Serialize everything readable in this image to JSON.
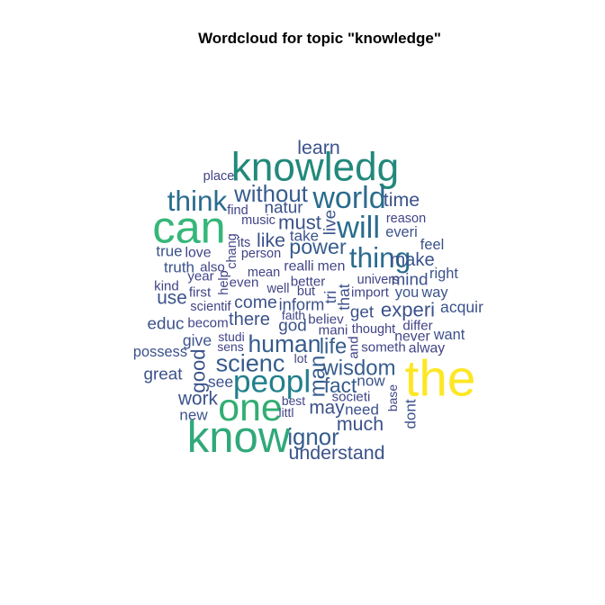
{
  "chart_data": {
    "type": "wordcloud",
    "title": "Wordcloud for topic \"knowledge\"",
    "colors": {
      "the": "#fde725",
      "can": "#35b779",
      "know": "#30a97a",
      "one": "#31ae72",
      "knowledg": "#21897a",
      "peopl": "#22808c",
      "world": "#2a6c8e",
      "will": "#2a6c8e",
      "think": "#2a6c8e",
      "thing": "#2a6c8e",
      "mid": "#365c8d",
      "small": "#3b528b",
      "tiny": "#414487"
    },
    "words": [
      {
        "text": "the",
        "size": 9.0,
        "rotated": false
      },
      {
        "text": "can",
        "size": 8.0,
        "rotated": false
      },
      {
        "text": "know",
        "size": 7.8,
        "rotated": false
      },
      {
        "text": "knowledg",
        "size": 7.0,
        "rotated": false
      },
      {
        "text": "one",
        "size": 6.8,
        "rotated": false
      },
      {
        "text": "peopl",
        "size": 5.6,
        "rotated": false
      },
      {
        "text": "will",
        "size": 5.5,
        "rotated": false
      },
      {
        "text": "world",
        "size": 5.4,
        "rotated": false
      },
      {
        "text": "think",
        "size": 5.0,
        "rotated": false
      },
      {
        "text": "thing",
        "size": 5.0,
        "rotated": false
      },
      {
        "text": "scienc",
        "size": 4.3,
        "rotated": false
      },
      {
        "text": "human",
        "size": 4.2,
        "rotated": false
      },
      {
        "text": "without",
        "size": 4.1,
        "rotated": false
      },
      {
        "text": "ignor",
        "size": 4.1,
        "rotated": false
      },
      {
        "text": "wisdom",
        "size": 3.8,
        "rotated": false
      },
      {
        "text": "man",
        "size": 3.8,
        "rotated": true
      },
      {
        "text": "power",
        "size": 3.7,
        "rotated": false
      },
      {
        "text": "life",
        "size": 3.8,
        "rotated": false
      },
      {
        "text": "fact",
        "size": 3.6,
        "rotated": false
      },
      {
        "text": "experi",
        "size": 3.5,
        "rotated": false
      },
      {
        "text": "must",
        "size": 3.5,
        "rotated": false
      },
      {
        "text": "good",
        "size": 3.5,
        "rotated": true
      },
      {
        "text": "learn",
        "size": 3.4,
        "rotated": false
      },
      {
        "text": "like",
        "size": 3.4,
        "rotated": false
      },
      {
        "text": "time",
        "size": 3.4,
        "rotated": false
      },
      {
        "text": "understand",
        "size": 3.4,
        "rotated": false
      },
      {
        "text": "much",
        "size": 3.4,
        "rotated": false
      },
      {
        "text": "may",
        "size": 3.3,
        "rotated": false
      },
      {
        "text": "work",
        "size": 3.3,
        "rotated": false
      },
      {
        "text": "use",
        "size": 3.3,
        "rotated": false
      },
      {
        "text": "make",
        "size": 3.2,
        "rotated": false
      },
      {
        "text": "there",
        "size": 3.2,
        "rotated": false
      },
      {
        "text": "come",
        "size": 3.1,
        "rotated": false
      },
      {
        "text": "mind",
        "size": 3.0,
        "rotated": false
      },
      {
        "text": "get",
        "size": 3.0,
        "rotated": false
      },
      {
        "text": "natur",
        "size": 3.0,
        "rotated": false
      },
      {
        "text": "live",
        "size": 3.0,
        "rotated": true
      },
      {
        "text": "educ",
        "size": 3.0,
        "rotated": false
      },
      {
        "text": "great",
        "size": 3.0,
        "rotated": false
      },
      {
        "text": "god",
        "size": 3.0,
        "rotated": false
      },
      {
        "text": "inform",
        "size": 2.9,
        "rotated": false
      },
      {
        "text": "tri",
        "size": 2.8,
        "rotated": true
      },
      {
        "text": "that",
        "size": 2.8,
        "rotated": true
      },
      {
        "text": "acquir",
        "size": 2.8,
        "rotated": false
      },
      {
        "text": "see",
        "size": 2.8,
        "rotated": false
      },
      {
        "text": "give",
        "size": 2.8,
        "rotated": false
      },
      {
        "text": "take",
        "size": 2.7,
        "rotated": false
      },
      {
        "text": "now",
        "size": 2.7,
        "rotated": false
      },
      {
        "text": "need",
        "size": 2.7,
        "rotated": false
      },
      {
        "text": "new",
        "size": 2.7,
        "rotated": false
      },
      {
        "text": "true",
        "size": 2.7,
        "rotated": false
      },
      {
        "text": "truth",
        "size": 2.7,
        "rotated": false
      },
      {
        "text": "dont",
        "size": 2.7,
        "rotated": true
      },
      {
        "text": "want",
        "size": 2.6,
        "rotated": false
      },
      {
        "text": "possess",
        "size": 2.6,
        "rotated": false
      },
      {
        "text": "everi",
        "size": 2.6,
        "rotated": false
      },
      {
        "text": "feel",
        "size": 2.6,
        "rotated": false
      },
      {
        "text": "right",
        "size": 2.6,
        "rotated": false
      },
      {
        "text": "way",
        "size": 2.6,
        "rotated": false
      },
      {
        "text": "you",
        "size": 2.6,
        "rotated": false
      },
      {
        "text": "realli",
        "size": 2.5,
        "rotated": false
      },
      {
        "text": "men",
        "size": 2.5,
        "rotated": false
      },
      {
        "text": "never",
        "size": 2.5,
        "rotated": false
      },
      {
        "text": "alway",
        "size": 2.5,
        "rotated": false
      },
      {
        "text": "love",
        "size": 2.5,
        "rotated": false
      },
      {
        "text": "societi",
        "size": 2.4,
        "rotated": false
      },
      {
        "text": "import",
        "size": 2.4,
        "rotated": false
      },
      {
        "text": "differ",
        "size": 2.4,
        "rotated": false
      },
      {
        "text": "and",
        "size": 2.4,
        "rotated": true
      },
      {
        "text": "even",
        "size": 2.4,
        "rotated": false
      },
      {
        "text": "better",
        "size": 2.4,
        "rotated": false
      },
      {
        "text": "believ",
        "size": 2.4,
        "rotated": false
      },
      {
        "text": "mani",
        "size": 2.4,
        "rotated": false
      },
      {
        "text": "someth",
        "size": 2.4,
        "rotated": false
      },
      {
        "text": "kind",
        "size": 2.4,
        "rotated": false
      },
      {
        "text": "first",
        "size": 2.4,
        "rotated": false
      },
      {
        "text": "becom",
        "size": 2.4,
        "rotated": false
      },
      {
        "text": "year",
        "size": 2.4,
        "rotated": false
      },
      {
        "text": "also",
        "size": 2.4,
        "rotated": false
      },
      {
        "text": "reason",
        "size": 2.3,
        "rotated": false
      },
      {
        "text": "univers",
        "size": 2.3,
        "rotated": false
      },
      {
        "text": "thought",
        "size": 2.3,
        "rotated": false
      },
      {
        "text": "place",
        "size": 2.3,
        "rotated": false
      },
      {
        "text": "find",
        "size": 2.3,
        "rotated": false
      },
      {
        "text": "music",
        "size": 2.3,
        "rotated": false
      },
      {
        "text": "person",
        "size": 2.3,
        "rotated": false
      },
      {
        "text": "mean",
        "size": 2.3,
        "rotated": false
      },
      {
        "text": "well",
        "size": 2.3,
        "rotated": false
      },
      {
        "text": "but",
        "size": 2.3,
        "rotated": false
      },
      {
        "text": "chang",
        "size": 2.3,
        "rotated": true
      },
      {
        "text": "its",
        "size": 2.3,
        "rotated": false
      },
      {
        "text": "help",
        "size": 2.3,
        "rotated": true
      },
      {
        "text": "scientif",
        "size": 2.3,
        "rotated": false
      },
      {
        "text": "faith",
        "size": 2.2,
        "rotated": false
      },
      {
        "text": "studi",
        "size": 2.2,
        "rotated": false
      },
      {
        "text": "sens",
        "size": 2.2,
        "rotated": false
      },
      {
        "text": "lot",
        "size": 2.2,
        "rotated": false
      },
      {
        "text": "best",
        "size": 2.2,
        "rotated": false
      },
      {
        "text": "littl",
        "size": 2.2,
        "rotated": false
      },
      {
        "text": "base",
        "size": 2.2,
        "rotated": true
      }
    ]
  }
}
